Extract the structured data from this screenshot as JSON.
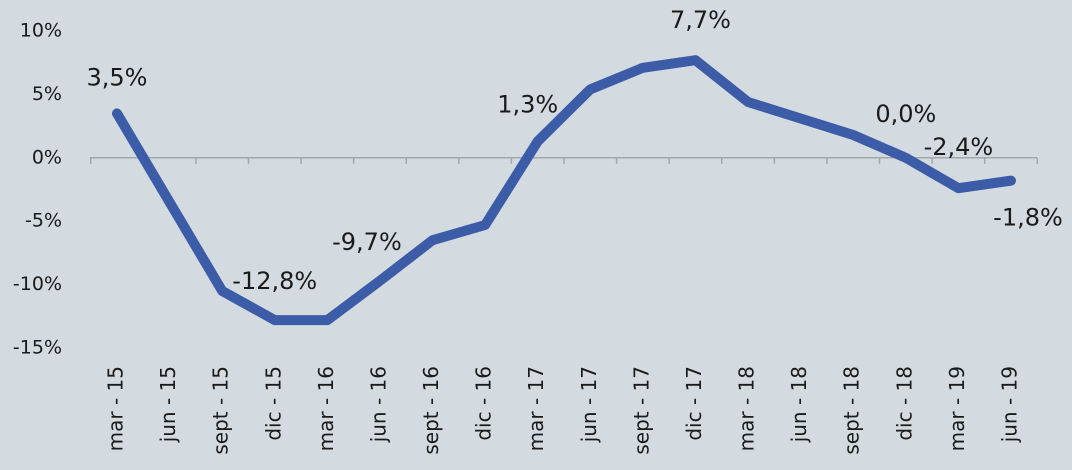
{
  "chart_data": {
    "type": "line",
    "categories": [
      "mar - 15",
      "jun - 15",
      "sept - 15",
      "dic - 15",
      "mar - 16",
      "jun - 16",
      "sept - 16",
      "dic - 16",
      "mar - 17",
      "jun - 17",
      "sept - 17",
      "dic - 17",
      "mar - 18",
      "jun - 18",
      "sept - 18",
      "dic - 18",
      "mar - 19",
      "jun - 19"
    ],
    "series": [
      {
        "color": "#3d5ca8",
        "values": [
          3.5,
          -3.5,
          -10.5,
          -12.8,
          -12.8,
          -9.7,
          -6.5,
          -5.3,
          1.3,
          5.4,
          7.1,
          7.7,
          4.4,
          3.1,
          1.8,
          0.0,
          -2.4,
          -1.8
        ],
        "value_labels": [
          "3,5%",
          null,
          null,
          "-12,8%",
          null,
          "-9,7%",
          null,
          null,
          "1,3%",
          null,
          null,
          "7,7%",
          null,
          null,
          null,
          "0,0%",
          "-2,4%",
          "-1,8%"
        ]
      }
    ],
    "ylim": [
      -15,
      10
    ],
    "yticks": [
      {
        "value": 10,
        "label": "10%"
      },
      {
        "value": 5,
        "label": "5%"
      },
      {
        "value": 0,
        "label": "0%"
      },
      {
        "value": -5,
        "label": "-5%"
      },
      {
        "value": -10,
        "label": "-10%"
      },
      {
        "value": -15,
        "label": "-15%"
      }
    ]
  }
}
